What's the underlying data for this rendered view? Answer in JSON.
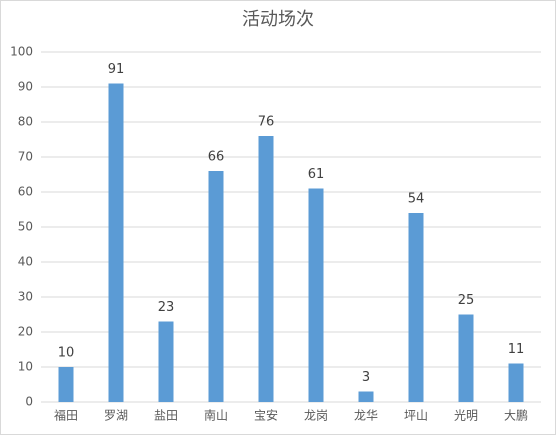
{
  "chart_data": {
    "type": "bar",
    "title": "活动场次",
    "categories": [
      "福田",
      "罗湖",
      "盐田",
      "南山",
      "宝安",
      "龙岗",
      "龙华",
      "坪山",
      "光明",
      "大鹏"
    ],
    "values": [
      10,
      91,
      23,
      66,
      76,
      61,
      3,
      54,
      25,
      11
    ],
    "color": "#5b9bd5",
    "ylim": [
      0,
      100
    ],
    "yticks": [
      0,
      10,
      20,
      30,
      40,
      50,
      60,
      70,
      80,
      90,
      100
    ],
    "grid": true
  }
}
